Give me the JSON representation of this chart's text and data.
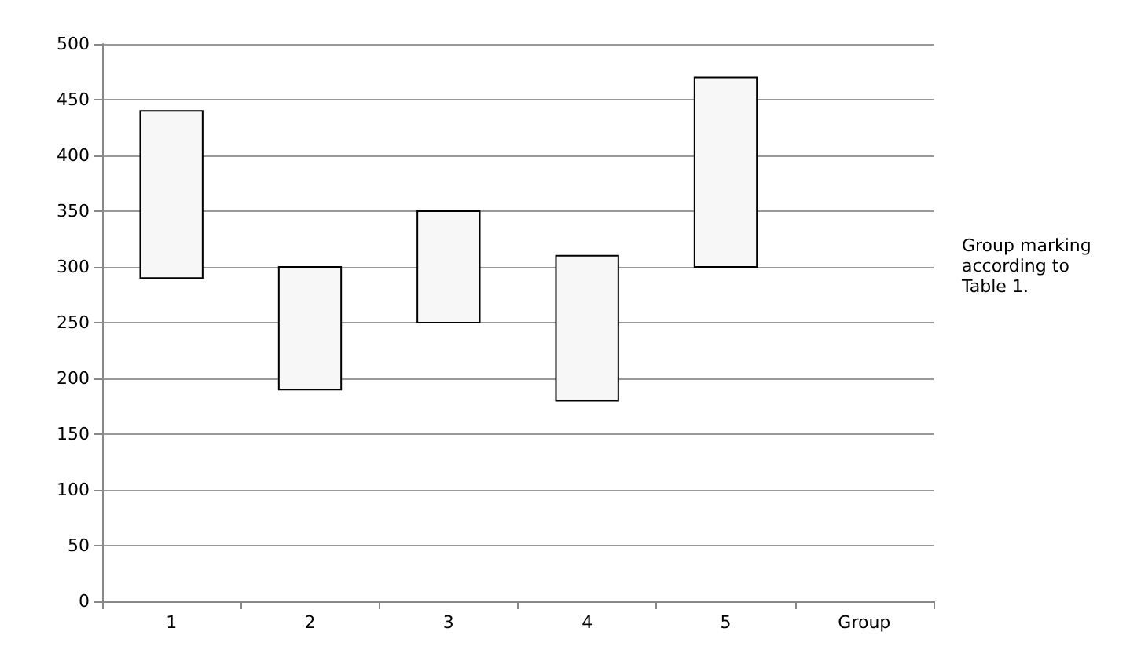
{
  "chart_data": {
    "type": "bar",
    "categories": [
      "1",
      "2",
      "3",
      "4",
      "5",
      "Group"
    ],
    "base": [
      290,
      190,
      250,
      180,
      300,
      null
    ],
    "values": [
      150,
      110,
      100,
      130,
      170,
      null
    ],
    "color": "#f7f7f7",
    "ylim": [
      0,
      500
    ],
    "yticks": [
      0,
      50,
      100,
      150,
      200,
      250,
      300,
      350,
      400,
      450,
      500
    ],
    "grid": "y",
    "annotations": [
      "Group marking according to Table 1."
    ]
  }
}
